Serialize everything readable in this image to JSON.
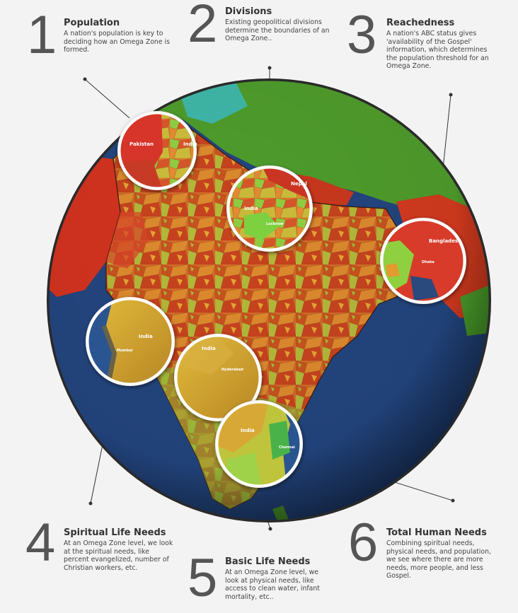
{
  "steps": [
    {
      "number": "1",
      "title": "Population",
      "text": "A nation's population is key to deciding how an Omega Zone is formed."
    },
    {
      "number": "2",
      "title": "Divisions",
      "text": "Existing geopolitical divisions determine the boundaries of an Omega Zone.."
    },
    {
      "number": "3",
      "title": "Reachedness",
      "text": "A nation's ABC status gives 'availability of the Gospel' information, which determines the population threshold for an Omega Zone."
    },
    {
      "number": "4",
      "title": "Spiritual Life Needs",
      "text": "At an Omega Zone level, we look at the spiritual needs, like percent evangelized, number of Christian workers, etc."
    },
    {
      "number": "5",
      "title": "Basic Life Needs",
      "text": "At an Omega Zone level, we look at physical needs, like access to clean water, infant mortality, etc.."
    },
    {
      "number": "6",
      "title": "Total Human Needs",
      "text": "Combining spiritual needs, physical needs, and population, we see where there are more needs, more people, and less Gospel."
    }
  ],
  "magnifiers": [
    {
      "labels": [
        "Pakistan",
        "India"
      ]
    },
    {
      "labels": [
        "Nepal",
        "India",
        "Lucknow"
      ]
    },
    {
      "labels": [
        "Bangladesh",
        "Dhaka"
      ]
    },
    {
      "labels": [
        "India",
        "Mumbai"
      ]
    },
    {
      "labels": [
        "India",
        "Hyderabad"
      ]
    },
    {
      "labels": [
        "India",
        "Chennai"
      ]
    }
  ],
  "colors": {
    "ocean": "#1f3f83",
    "land_high_need": "#cf3b1f",
    "land_mid_need": "#d9762a",
    "land_low_need": "#a9c43a",
    "neighbor_green": "#56a82e",
    "basic_needs_gold": "#c99a2a"
  }
}
